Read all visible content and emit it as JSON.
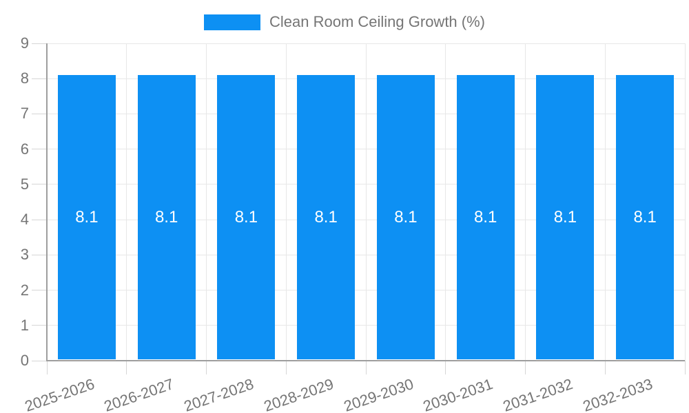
{
  "chart_data": {
    "type": "bar",
    "title": "Clean Room Ceiling Growth (%)",
    "legend_position": "top",
    "categories": [
      "2025-2026",
      "2026-2027",
      "2027-2028",
      "2028-2029",
      "2029-2030",
      "2030-2031",
      "2031-2032",
      "2032-2033"
    ],
    "series": [
      {
        "name": "Clean Room Ceiling Growth (%)",
        "values": [
          8.1,
          8.1,
          8.1,
          8.1,
          8.1,
          8.1,
          8.1,
          8.1
        ]
      }
    ],
    "bar_value_labels": [
      "8.1",
      "8.1",
      "8.1",
      "8.1",
      "8.1",
      "8.1",
      "8.1",
      "8.1"
    ],
    "xlabel": "",
    "ylabel": "",
    "ylim": [
      0,
      9
    ],
    "yticks": [
      0,
      1,
      2,
      3,
      4,
      5,
      6,
      7,
      8,
      9
    ],
    "grid": true,
    "x_label_rotation_deg": -19
  },
  "colors": {
    "bar": "#0D90F3",
    "grid": "#e7e7e7",
    "tick": "#d6d6d6",
    "axis": "#9e9e9e",
    "text": "#757575",
    "value_label": "#ffffff",
    "background": "#ffffff"
  }
}
